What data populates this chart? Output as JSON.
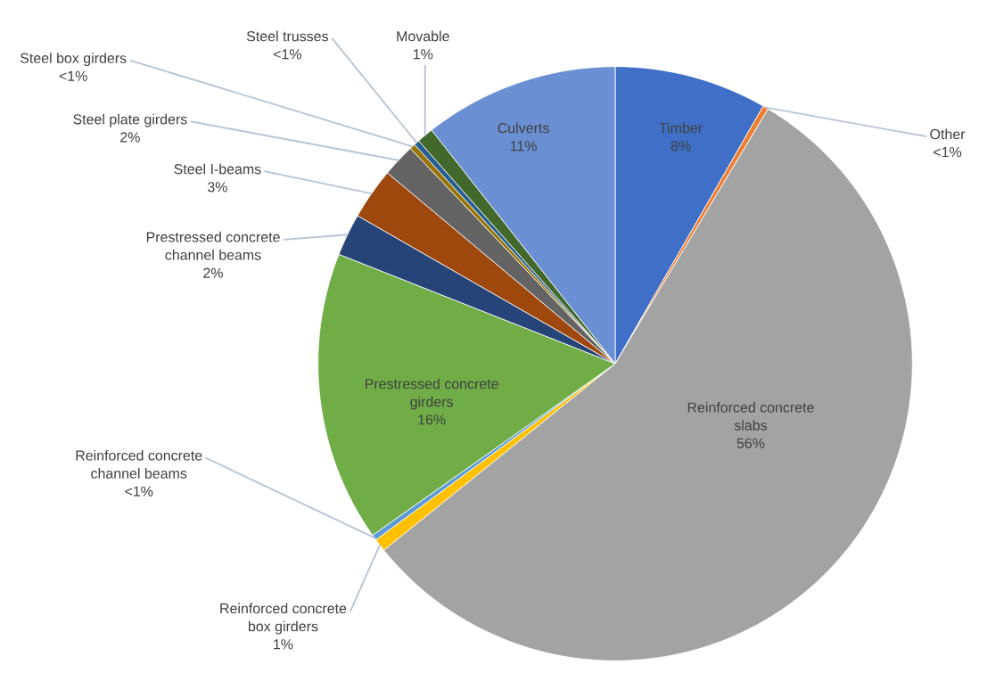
{
  "chart_data": {
    "type": "pie",
    "categories": [
      "Timber",
      "Other",
      "Reinforced concrete\nslabs",
      "Reinforced concrete\nbox girders",
      "Reinforced concrete\nchannel beams",
      "Prestressed concrete\ngirders",
      "Prestressed concrete\nchannel beams",
      "Steel I-beams",
      "Steel plate girders",
      "Steel box girders",
      "Steel trusses",
      "Movable",
      "Culverts"
    ],
    "values": [
      8.3,
      0.3,
      55.6,
      0.7,
      0.3,
      15.8,
      2.3,
      2.8,
      1.8,
      0.3,
      0.3,
      0.9,
      10.6
    ],
    "colors": [
      "#3f6fc6",
      "#ed7d31",
      "#a3a3a3",
      "#ffc000",
      "#5b9bd5",
      "#70ad47",
      "#264478",
      "#9e480e",
      "#636363",
      "#997300",
      "#255e91",
      "#43682b",
      "#6a8fd2"
    ],
    "value_labels": [
      "8%",
      "<1%",
      "56%",
      "1%",
      "<1%",
      "16%",
      "2%",
      "3%",
      "2%",
      "<1%",
      "<1%",
      "1%",
      "11%"
    ],
    "legend": false
  }
}
